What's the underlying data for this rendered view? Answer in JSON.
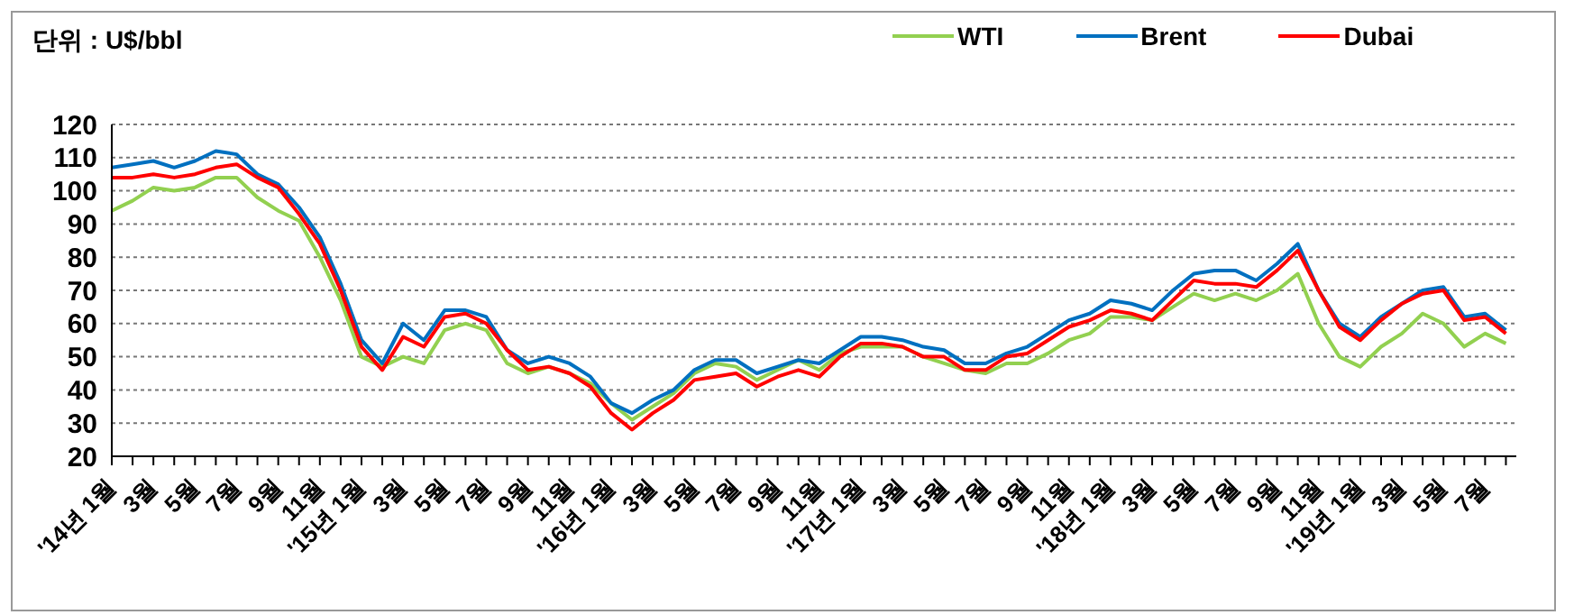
{
  "chart_data": {
    "type": "line",
    "ylabel": "단위 : U$/bbl",
    "categories": [
      "'14년 1월",
      null,
      "3월",
      null,
      "5월",
      null,
      "7월",
      null,
      "9월",
      null,
      "11월",
      null,
      "'15년 1월",
      null,
      "3월",
      null,
      "5월",
      null,
      "7월",
      null,
      "9월",
      null,
      "11월",
      null,
      "'16년 1월",
      null,
      "3월",
      null,
      "5월",
      null,
      "7월",
      null,
      "9월",
      null,
      "11월",
      null,
      "'17년 1월",
      null,
      "3월",
      null,
      "5월",
      null,
      "7월",
      null,
      "9월",
      null,
      "11월",
      null,
      "'18년 1월",
      null,
      "3월",
      null,
      "5월",
      null,
      "7월",
      null,
      "9월",
      null,
      "11월",
      null,
      "'19년 1월",
      null,
      "3월",
      null,
      "5월",
      null,
      "7월",
      null
    ],
    "series": [
      {
        "name": "WTI",
        "color": "#92d050",
        "values": [
          94,
          97,
          101,
          100,
          101,
          104,
          104,
          98,
          94,
          91,
          80,
          67,
          50,
          47,
          50,
          48,
          58,
          60,
          58,
          48,
          45,
          47,
          45,
          42,
          36,
          31,
          35,
          39,
          45,
          48,
          47,
          43,
          46,
          49,
          46,
          51,
          53,
          53,
          53,
          50,
          48,
          46,
          45,
          48,
          48,
          51,
          55,
          57,
          62,
          62,
          61,
          65,
          69,
          67,
          69,
          67,
          70,
          75,
          60,
          50,
          47,
          53,
          57,
          63,
          60,
          53,
          57,
          54
        ]
      },
      {
        "name": "Brent",
        "color": "#0070c0",
        "values": [
          107,
          108,
          109,
          107,
          109,
          112,
          111,
          105,
          102,
          95,
          86,
          72,
          55,
          48,
          60,
          55,
          64,
          64,
          62,
          52,
          48,
          50,
          48,
          44,
          36,
          33,
          37,
          40,
          46,
          49,
          49,
          45,
          47,
          49,
          48,
          52,
          56,
          56,
          55,
          53,
          52,
          48,
          48,
          51,
          53,
          57,
          61,
          63,
          67,
          66,
          64,
          70,
          75,
          76,
          76,
          73,
          78,
          84,
          70,
          60,
          56,
          62,
          66,
          70,
          71,
          62,
          63,
          58
        ]
      },
      {
        "name": "Dubai",
        "color": "#ff0000",
        "values": [
          104,
          104,
          105,
          104,
          105,
          107,
          108,
          104,
          101,
          93,
          84,
          70,
          53,
          46,
          56,
          53,
          62,
          63,
          60,
          52,
          46,
          47,
          45,
          41,
          33,
          28,
          33,
          37,
          43,
          44,
          45,
          41,
          44,
          46,
          44,
          50,
          54,
          54,
          53,
          50,
          50,
          46,
          46,
          50,
          51,
          55,
          59,
          61,
          64,
          63,
          61,
          67,
          73,
          72,
          72,
          71,
          76,
          82,
          70,
          59,
          55,
          61,
          66,
          69,
          70,
          61,
          62,
          57
        ]
      }
    ],
    "ylim": [
      20,
      120
    ],
    "yticks": [
      20,
      30,
      40,
      50,
      60,
      70,
      80,
      90,
      100,
      110,
      120
    ],
    "grid": "y",
    "legend": "top right",
    "marker": "none",
    "line_style": "solid"
  }
}
